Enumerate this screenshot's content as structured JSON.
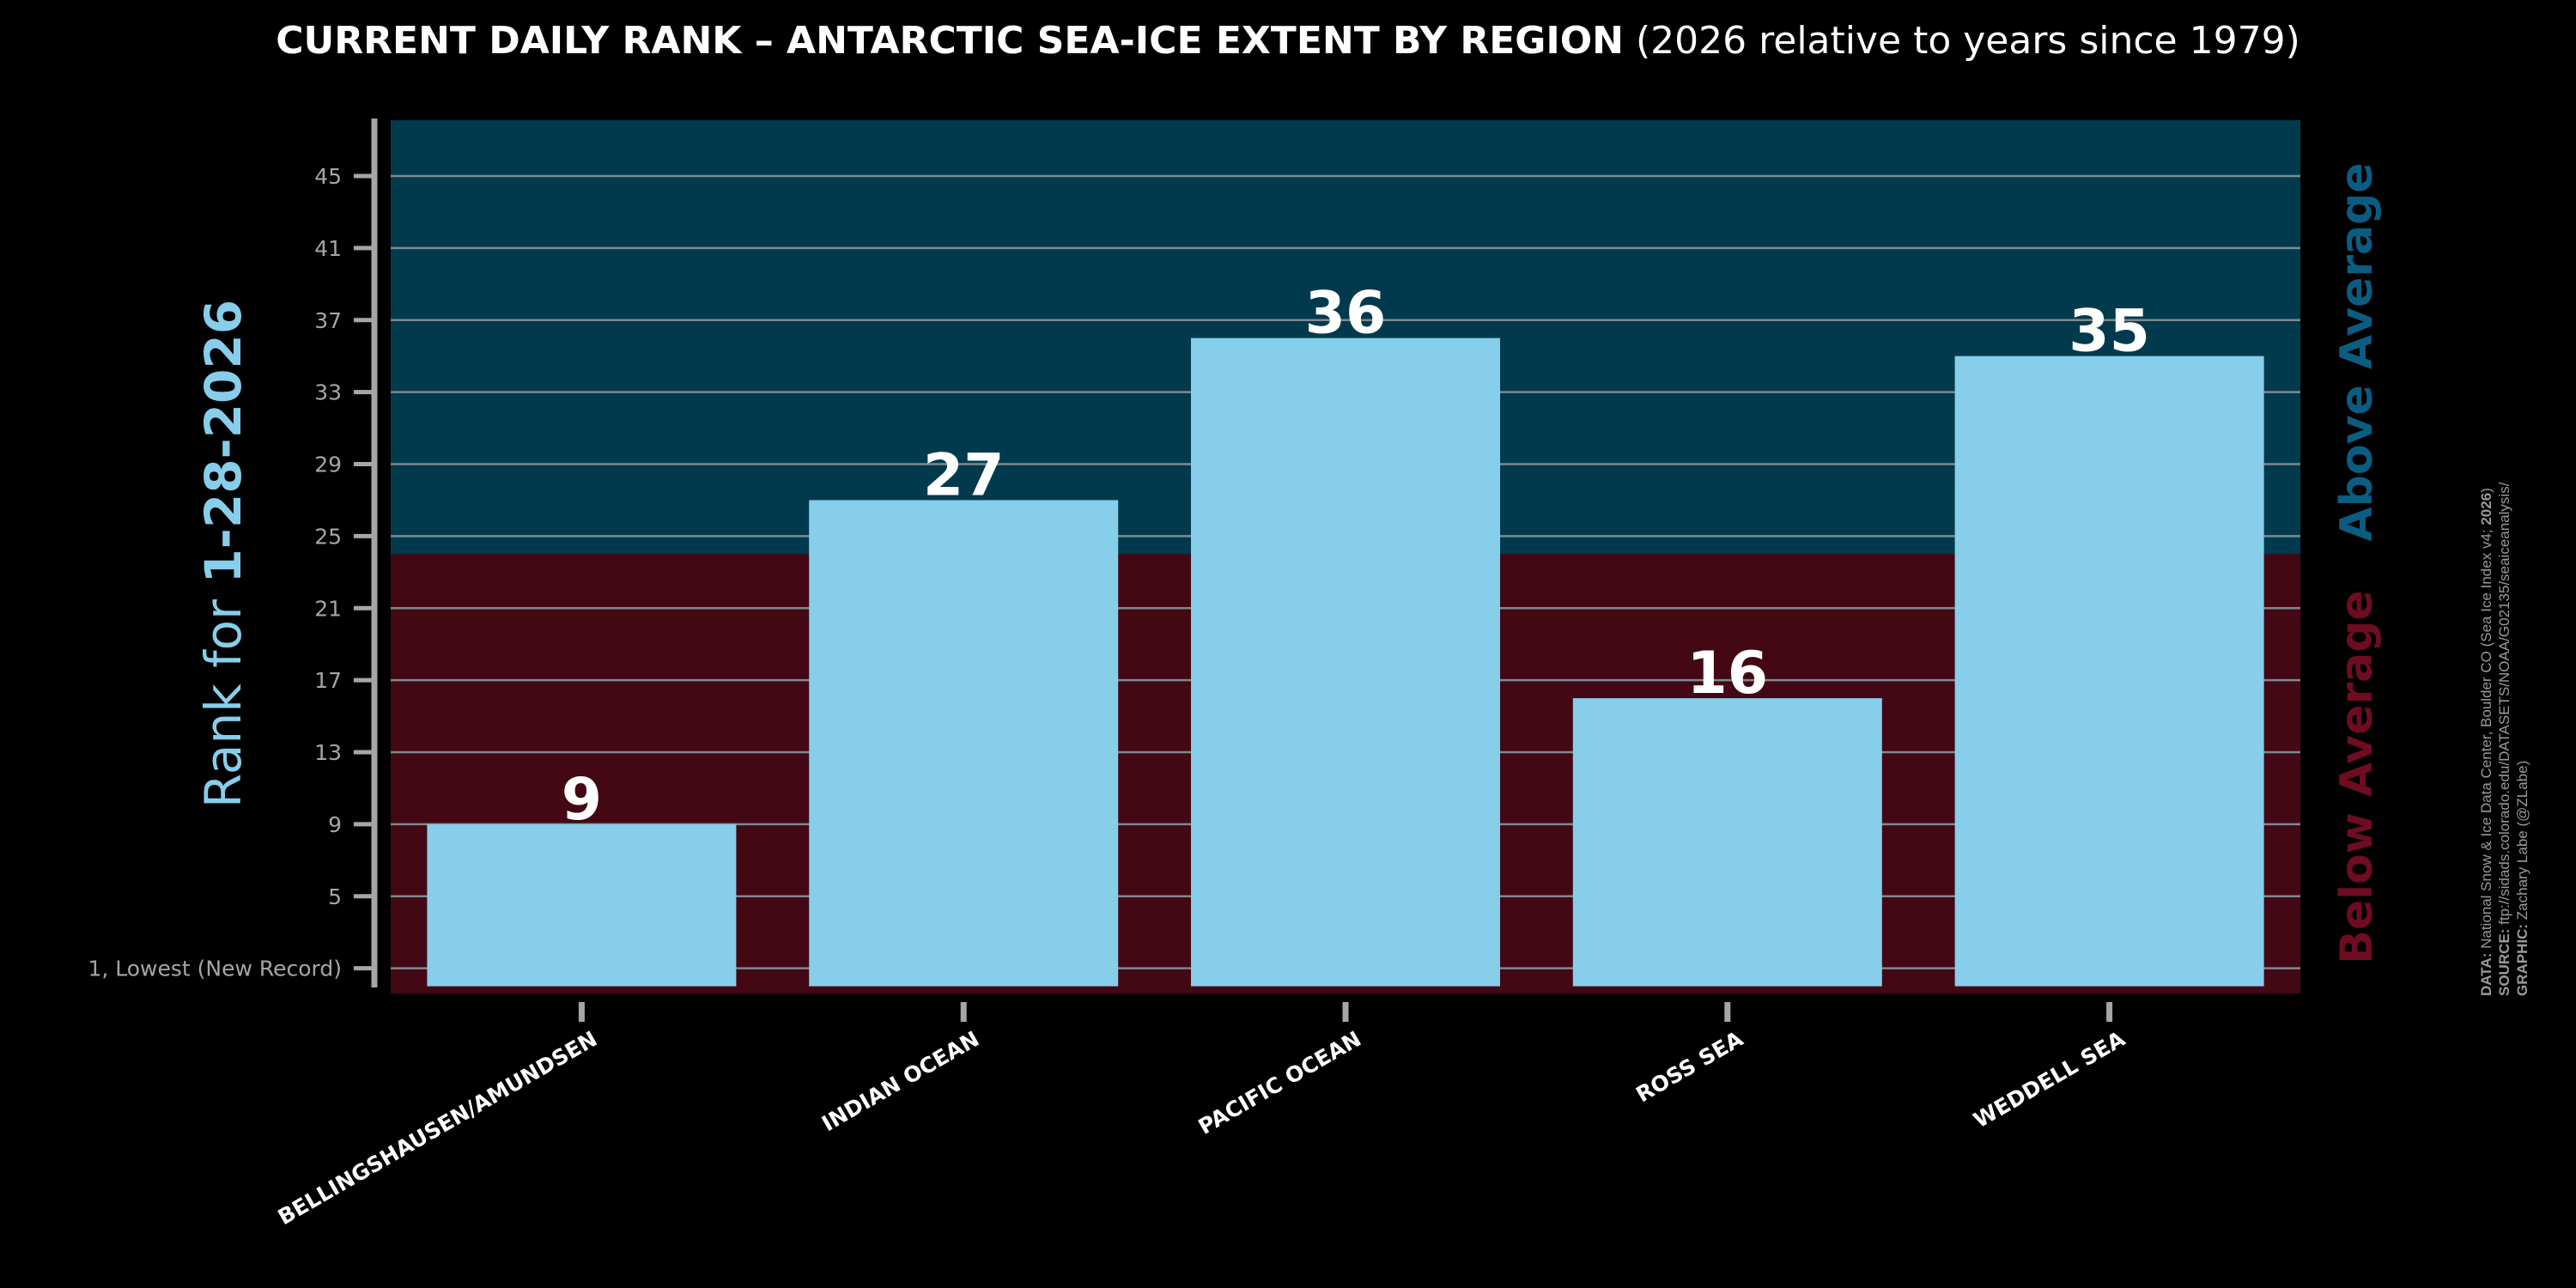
{
  "title": {
    "bold": "CURRENT DAILY RANK – ANTARCTIC SEA-ICE EXTENT BY REGION",
    "normal": "(2026 relative to years since 1979)"
  },
  "chart_data": {
    "type": "bar",
    "categories": [
      "BELLINGSHAUSEN/AMUNDSEN",
      "INDIAN OCEAN",
      "PACIFIC OCEAN",
      "ROSS SEA",
      "WEDDELL SEA"
    ],
    "values": [
      9,
      27,
      36,
      16,
      35
    ],
    "data_labels": [
      "9",
      "27",
      "36",
      "16",
      "35"
    ],
    "ylabel_prefix": "Rank for ",
    "ylabel_date": "1-28-2026",
    "ylim": [
      -0.4,
      48.1
    ],
    "yticks": [
      1,
      5,
      9,
      13,
      17,
      21,
      25,
      29,
      33,
      37,
      41,
      45
    ],
    "ytick_labels": [
      "1, Lowest (New Record)",
      "5",
      "9",
      "13",
      "17",
      "21",
      "25",
      "29",
      "33",
      "37",
      "41",
      "45"
    ],
    "average_threshold": 24,
    "region_labels": {
      "above": "Above Average",
      "below": "Below Average"
    },
    "grid": true
  },
  "colors": {
    "bar": "#87ceeb",
    "above_bg": "#023a4d",
    "below_bg": "#430814",
    "above_text": "#0b5c80",
    "below_text": "#6e0c22",
    "grid": "#7d8a90",
    "axis": "#a6a6a6",
    "label_accent": "#87ceeb"
  },
  "credits": {
    "data_label": "DATA:",
    "data_text": " National Snow & Ice Data Center, Boulder CO (Sea Ice Index v4; ",
    "data_year": "2026",
    "data_close": ")",
    "source_label": "SOURCE:",
    "source_text": " ftp://sidads.colorado.edu/DATASETS/NOAA/G02135/seaiceanalysis/",
    "graphic_label": "GRAPHIC:",
    "graphic_text": " Zachary Labe (@ZLabe)"
  }
}
